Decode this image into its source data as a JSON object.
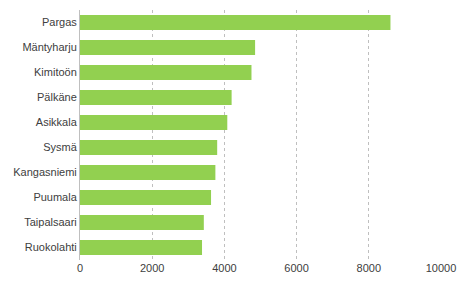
{
  "chart_data": {
    "type": "bar",
    "orientation": "horizontal",
    "categories": [
      "Pargas",
      "Mäntyharju",
      "Kimitoön",
      "Pälkäne",
      "Asikkala",
      "Sysmä",
      "Kangasniemi",
      "Puumala",
      "Taipalsaari",
      "Ruokolahti"
    ],
    "values": [
      8600,
      4850,
      4750,
      4200,
      4080,
      3800,
      3750,
      3630,
      3430,
      3380
    ],
    "color": "#92d050",
    "xlim": [
      0,
      10000
    ],
    "xticks": [
      0,
      2000,
      4000,
      6000,
      8000,
      10000
    ],
    "grid": true
  }
}
